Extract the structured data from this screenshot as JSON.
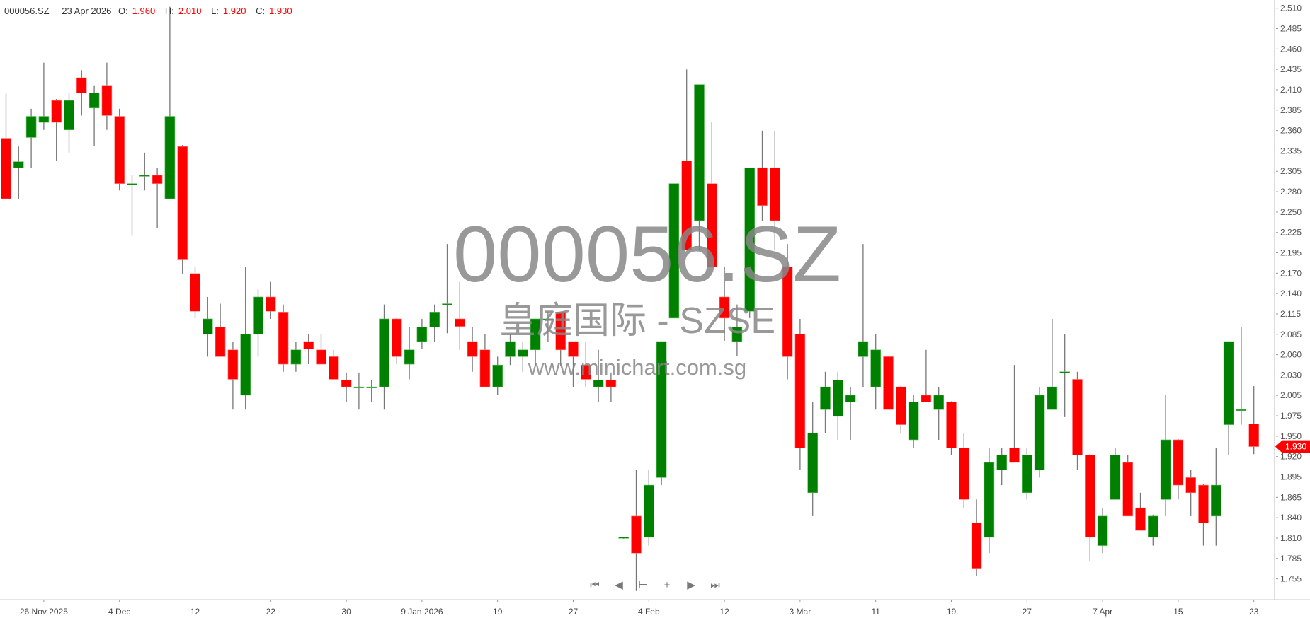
{
  "header": {
    "symbol": "000056.SZ",
    "date": "23 Apr 2026",
    "open_label": "O:",
    "open": "1.960",
    "high_label": "H:",
    "high": "2.010",
    "low_label": "L:",
    "low": "1.920",
    "close_label": "C:",
    "close": "1.930"
  },
  "watermark": {
    "symbol": "000056.SZ",
    "name": "皇庭国际 - SZSE",
    "site": "www.minichart.com.sg"
  },
  "nav": {
    "first": "⏮",
    "prev": "◀",
    "reset": "⊢",
    "zoom_in": "+",
    "next": "▶",
    "last": "⏭"
  },
  "colors": {
    "up": "#008000",
    "down": "#ff0000",
    "wick": "#777777",
    "price_tag": "#ff0000"
  },
  "chart_data": {
    "type": "candlestick",
    "y_axis_position": "right",
    "ylim": [
      1.755,
      2.51
    ],
    "y_ticks": [
      "2.510",
      "2.485",
      "2.460",
      "2.435",
      "2.410",
      "2.385",
      "2.360",
      "2.335",
      "2.305",
      "2.280",
      "2.250",
      "2.225",
      "2.195",
      "2.170",
      "2.140",
      "2.115",
      "2.085",
      "2.060",
      "2.030",
      "2.005",
      "1.975",
      "1.950",
      "1.920",
      "1.895",
      "1.865",
      "1.840",
      "1.810",
      "1.785",
      "1.755"
    ],
    "x_ticks": [
      {
        "label": "26 Nov 2025",
        "index": 3
      },
      {
        "label": "4 Dec",
        "index": 9
      },
      {
        "label": "12",
        "index": 15
      },
      {
        "label": "22",
        "index": 21
      },
      {
        "label": "30",
        "index": 27
      },
      {
        "label": "9 Jan 2026",
        "index": 33
      },
      {
        "label": "19",
        "index": 39
      },
      {
        "label": "27",
        "index": 45
      },
      {
        "label": "4 Feb",
        "index": 51
      },
      {
        "label": "12",
        "index": 57
      },
      {
        "label": "3 Mar",
        "index": 63
      },
      {
        "label": "11",
        "index": 69
      },
      {
        "label": "19",
        "index": 75
      },
      {
        "label": "27",
        "index": 81
      },
      {
        "label": "7 Apr",
        "index": 87
      },
      {
        "label": "15",
        "index": 93
      },
      {
        "label": "23",
        "index": 99
      }
    ],
    "last_price": "1.930",
    "ohlc_fields": [
      "open",
      "high",
      "low",
      "close"
    ],
    "ohlc": [
      [
        2.338,
        2.397,
        2.258,
        2.258
      ],
      [
        2.299,
        2.327,
        2.258,
        2.307
      ],
      [
        2.339,
        2.377,
        2.299,
        2.367
      ],
      [
        2.359,
        2.438,
        2.349,
        2.367
      ],
      [
        2.388,
        2.39,
        2.308,
        2.359
      ],
      [
        2.349,
        2.397,
        2.319,
        2.388
      ],
      [
        2.418,
        2.428,
        2.368,
        2.398
      ],
      [
        2.378,
        2.408,
        2.328,
        2.398
      ],
      [
        2.408,
        2.438,
        2.349,
        2.368
      ],
      [
        2.367,
        2.377,
        2.269,
        2.278
      ],
      [
        2.277,
        2.289,
        2.209,
        2.278
      ],
      [
        2.288,
        2.319,
        2.269,
        2.289
      ],
      [
        2.289,
        2.299,
        2.219,
        2.278
      ],
      [
        2.258,
        2.512,
        2.258,
        2.367
      ],
      [
        2.327,
        2.329,
        2.159,
        2.178
      ],
      [
        2.159,
        2.168,
        2.1,
        2.109
      ],
      [
        2.079,
        2.128,
        2.049,
        2.099
      ],
      [
        2.088,
        2.119,
        2.049,
        2.049
      ],
      [
        2.058,
        2.069,
        1.979,
        2.019
      ],
      [
        1.998,
        2.168,
        1.979,
        2.079
      ],
      [
        2.079,
        2.138,
        2.049,
        2.128
      ],
      [
        2.128,
        2.148,
        2.099,
        2.109
      ],
      [
        2.108,
        2.118,
        2.029,
        2.039
      ],
      [
        2.039,
        2.069,
        2.029,
        2.058
      ],
      [
        2.069,
        2.079,
        2.039,
        2.059
      ],
      [
        2.058,
        2.079,
        2.039,
        2.039
      ],
      [
        2.049,
        2.058,
        2.019,
        2.019
      ],
      [
        2.018,
        2.028,
        1.989,
        2.009
      ],
      [
        2.008,
        2.028,
        1.979,
        2.009
      ],
      [
        2.008,
        2.018,
        1.989,
        2.009
      ],
      [
        2.009,
        2.118,
        1.979,
        2.099
      ],
      [
        2.099,
        2.1,
        2.039,
        2.049
      ],
      [
        2.039,
        2.088,
        2.019,
        2.058
      ],
      [
        2.069,
        2.099,
        2.059,
        2.088
      ],
      [
        2.088,
        2.118,
        2.069,
        2.108
      ],
      [
        2.118,
        2.198,
        2.08,
        2.119
      ],
      [
        2.099,
        2.148,
        2.058,
        2.089
      ],
      [
        2.069,
        2.088,
        2.029,
        2.049
      ],
      [
        2.058,
        2.079,
        2.009,
        2.009
      ],
      [
        2.009,
        2.049,
        1.998,
        2.038
      ],
      [
        2.049,
        2.079,
        2.038,
        2.069
      ],
      [
        2.049,
        2.069,
        2.029,
        2.058
      ],
      [
        2.058,
        2.099,
        2.037,
        2.099
      ],
      [
        2.098,
        2.108,
        2.069,
        2.099
      ],
      [
        2.108,
        2.108,
        2.037,
        2.058
      ],
      [
        2.069,
        2.069,
        2.009,
        2.049
      ],
      [
        2.038,
        2.069,
        2.009,
        2.019
      ],
      [
        2.009,
        2.058,
        1.989,
        2.018
      ],
      [
        2.018,
        2.028,
        1.989,
        2.009
      ],
      [
        1.809,
        1.81,
        1.808,
        1.81
      ],
      [
        1.838,
        1.899,
        1.739,
        1.789
      ],
      [
        1.81,
        1.899,
        1.799,
        1.879
      ],
      [
        1.889,
        2.069,
        1.879,
        2.069
      ],
      [
        2.1,
        2.278,
        2.1,
        2.278
      ],
      [
        2.308,
        2.429,
        2.19,
        2.19
      ],
      [
        2.229,
        2.409,
        2.19,
        2.409
      ],
      [
        2.278,
        2.359,
        2.168,
        2.168
      ],
      [
        2.128,
        2.168,
        2.07,
        2.1
      ],
      [
        2.069,
        2.118,
        2.05,
        2.088
      ],
      [
        2.109,
        2.299,
        2.1,
        2.299
      ],
      [
        2.299,
        2.348,
        2.229,
        2.249
      ],
      [
        2.299,
        2.348,
        2.19,
        2.229
      ],
      [
        2.168,
        2.198,
        2.019,
        2.049
      ],
      [
        2.079,
        2.099,
        1.899,
        1.928
      ],
      [
        1.869,
        1.989,
        1.838,
        1.948
      ],
      [
        1.979,
        2.029,
        1.948,
        2.009
      ],
      [
        1.97,
        2.029,
        1.939,
        2.018
      ],
      [
        1.989,
        2.009,
        1.939,
        1.998
      ],
      [
        2.049,
        2.198,
        2.009,
        2.069
      ],
      [
        2.009,
        2.079,
        1.979,
        2.058
      ],
      [
        2.049,
        2.05,
        1.979,
        1.979
      ],
      [
        2.009,
        2.01,
        1.948,
        1.959
      ],
      [
        1.939,
        1.998,
        1.928,
        1.989
      ],
      [
        1.998,
        2.058,
        1.989,
        1.989
      ],
      [
        1.979,
        2.009,
        1.939,
        1.998
      ],
      [
        1.989,
        1.99,
        1.919,
        1.928
      ],
      [
        1.928,
        1.948,
        1.849,
        1.86
      ],
      [
        1.829,
        1.86,
        1.759,
        1.769
      ],
      [
        1.81,
        1.928,
        1.789,
        1.909
      ],
      [
        1.899,
        1.928,
        1.879,
        1.919
      ],
      [
        1.928,
        2.038,
        1.909,
        1.909
      ],
      [
        1.869,
        1.928,
        1.86,
        1.919
      ],
      [
        1.899,
        2.009,
        1.889,
        1.998
      ],
      [
        1.979,
        2.099,
        1.979,
        2.009
      ],
      [
        2.028,
        2.079,
        1.969,
        2.029
      ],
      [
        2.019,
        2.029,
        1.899,
        1.919
      ],
      [
        1.919,
        1.92,
        1.779,
        1.81
      ],
      [
        1.799,
        1.849,
        1.789,
        1.838
      ],
      [
        1.86,
        1.928,
        1.86,
        1.919
      ],
      [
        1.909,
        1.919,
        1.838,
        1.838
      ],
      [
        1.849,
        1.869,
        1.819,
        1.819
      ],
      [
        1.81,
        1.84,
        1.799,
        1.838
      ],
      [
        1.86,
        1.998,
        1.838,
        1.939
      ],
      [
        1.939,
        1.94,
        1.86,
        1.879
      ],
      [
        1.889,
        1.899,
        1.838,
        1.869
      ],
      [
        1.879,
        1.88,
        1.799,
        1.829
      ],
      [
        1.838,
        1.928,
        1.799,
        1.879
      ],
      [
        1.959,
        2.069,
        1.919,
        2.069
      ],
      [
        1.978,
        2.088,
        1.959,
        1.979
      ],
      [
        1.96,
        2.01,
        1.92,
        1.93
      ]
    ]
  }
}
